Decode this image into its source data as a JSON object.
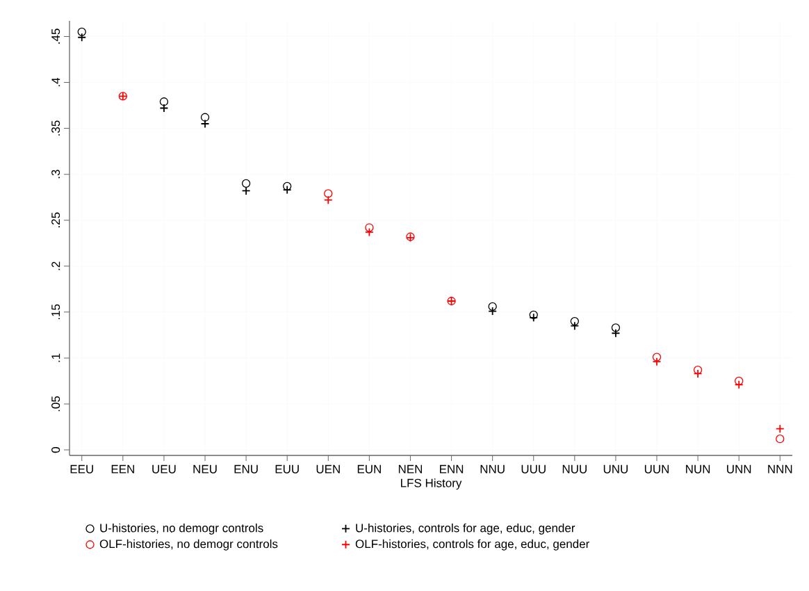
{
  "chart_data": {
    "type": "scatter",
    "xlabel": "LFS History",
    "categories": [
      "EEU",
      "EEN",
      "UEU",
      "NEU",
      "ENU",
      "EUU",
      "UEN",
      "EUN",
      "NEN",
      "ENN",
      "NNU",
      "UUU",
      "NUU",
      "UNU",
      "UUN",
      "NUN",
      "UNN",
      "NNN"
    ],
    "series": [
      {
        "name": "U-histories, no demogr controls",
        "color": "#000000",
        "marker": "circle",
        "values": [
          0.455,
          null,
          0.379,
          0.362,
          0.29,
          0.287,
          null,
          null,
          null,
          null,
          0.156,
          0.147,
          0.14,
          0.133,
          null,
          null,
          null,
          null
        ]
      },
      {
        "name": "U-histories, controls for age, educ, gender",
        "color": "#000000",
        "marker": "cross",
        "values": [
          0.449,
          null,
          0.372,
          0.355,
          0.282,
          0.283,
          null,
          null,
          null,
          null,
          0.151,
          0.144,
          0.135,
          0.127,
          null,
          null,
          null,
          null
        ]
      },
      {
        "name": "OLF-histories, no demogr controls",
        "color": "#ff0000",
        "marker": "circle",
        "values": [
          null,
          0.385,
          null,
          null,
          null,
          null,
          0.279,
          0.242,
          0.232,
          0.162,
          null,
          null,
          null,
          null,
          0.101,
          0.087,
          0.075,
          0.012
        ]
      },
      {
        "name": "OLF-histories, controls for age, educ, gender",
        "color": "#ff0000",
        "marker": "cross",
        "values": [
          null,
          0.385,
          null,
          null,
          null,
          null,
          0.272,
          0.237,
          0.231,
          0.162,
          null,
          null,
          null,
          null,
          0.096,
          0.083,
          0.071,
          0.023
        ]
      }
    ],
    "ylim": [
      -0.006,
      0.467
    ],
    "yticks": [
      0,
      {
        "value": 0.05,
        "label": ".05"
      },
      {
        "value": 0.1,
        "label": ".1"
      },
      {
        "value": 0.15,
        "label": ".15"
      },
      {
        "value": 0.2,
        "label": ".2"
      },
      {
        "value": 0.25,
        "label": ".25"
      },
      {
        "value": 0.3,
        "label": ".3"
      },
      {
        "value": 0.35,
        "label": ".35"
      },
      {
        "value": 0.4,
        "label": ".4"
      },
      {
        "value": 0.45,
        "label": ".45"
      }
    ],
    "grid": true,
    "legend": "bottom"
  }
}
